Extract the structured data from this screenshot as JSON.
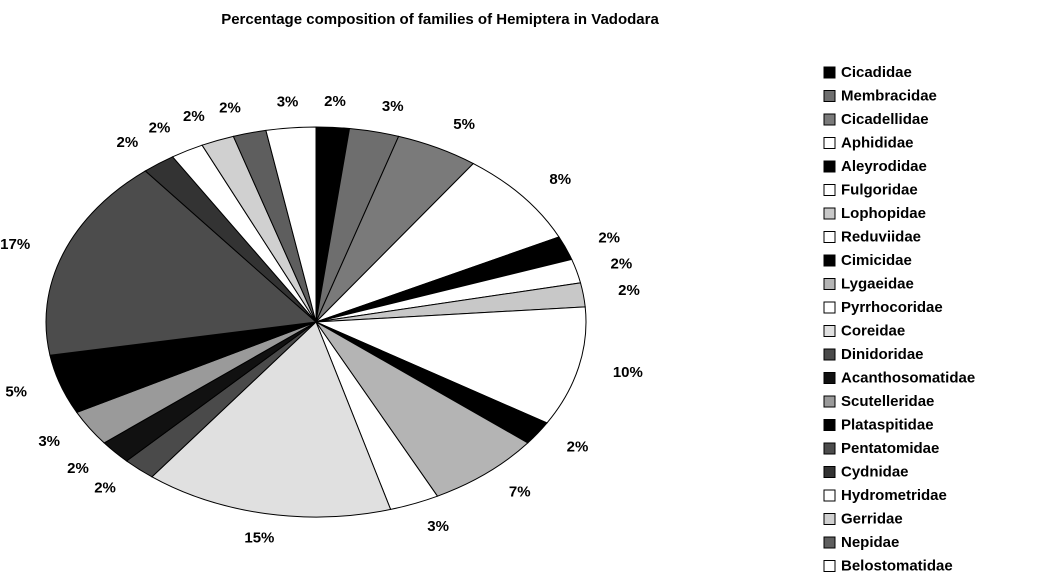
{
  "chart_data": {
    "type": "pie",
    "title": "Percentage composition of families of Hemiptera in Vadodara",
    "categories": [
      "Cicadidae",
      "Membracidae",
      "Cicadellidae",
      "Aphididae",
      "Aleyrodidae",
      "Fulgoridae",
      "Lophopidae",
      "Reduviidae",
      "Cimicidae",
      "Lygaeidae",
      "Pyrrhocoridae",
      "Coreidae",
      "Dinidoridae",
      "Acanthosomatidae",
      "Scutelleridae",
      "Plataspitidae",
      "Pentatomidae",
      "Cydnidae",
      "Hydrometridae",
      "Gerridae",
      "Nepidae",
      "Belostomatidae"
    ],
    "values": [
      2,
      3,
      5,
      8,
      2,
      2,
      2,
      10,
      2,
      7,
      3,
      15,
      2,
      2,
      3,
      5,
      17,
      2,
      2,
      2,
      2,
      3
    ],
    "value_labels": [
      "2%",
      "3%",
      "5%",
      "8%",
      "2%",
      "2%",
      "2%",
      "10%",
      "2%",
      "7%",
      "3%",
      "15%",
      "2%",
      "2%",
      "3%",
      "5%",
      "17%",
      "2%",
      "2%",
      "2%",
      "2%",
      "3%"
    ],
    "colors": [
      "#000000",
      "#6e6e6e",
      "#7a7a7a",
      "#ffffff",
      "#000000",
      "#ffffff",
      "#c8c8c8",
      "#ffffff",
      "#000000",
      "#b4b4b4",
      "#ffffff",
      "#e0e0e0",
      "#4a4a4a",
      "#111111",
      "#9a9a9a",
      "#000000",
      "#4c4c4c",
      "#333333",
      "#ffffff",
      "#d0d0d0",
      "#5e5e5e",
      "#ffffff"
    ],
    "legend": "right"
  }
}
